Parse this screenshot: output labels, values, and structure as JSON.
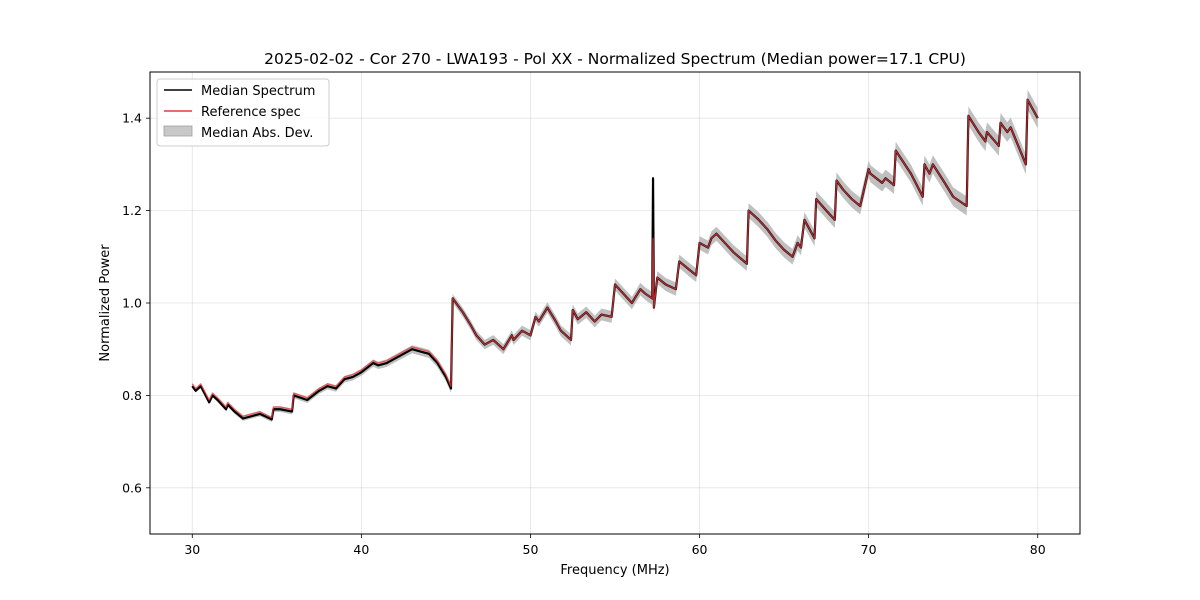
{
  "chart_data": {
    "type": "line",
    "title": "2025-02-02 - Cor 270 - LWA193 - Pol XX - Normalized Spectrum (Median power=17.1 CPU)",
    "xlabel": "Frequency (MHz)",
    "ylabel": "Normalized Power",
    "xlim": [
      27.5,
      82.5
    ],
    "ylim": [
      0.5,
      1.5
    ],
    "xticks": [
      30,
      40,
      50,
      60,
      70,
      80
    ],
    "yticks": [
      0.6,
      0.8,
      1.0,
      1.2,
      1.4
    ],
    "xtick_labels": [
      "30",
      "40",
      "50",
      "60",
      "70",
      "80"
    ],
    "ytick_labels": [
      "0.6",
      "0.8",
      "1.0",
      "1.2",
      "1.4"
    ],
    "grid": true,
    "legend_position": "top-left",
    "colors": {
      "median": "#000000",
      "reference": "#e8383d",
      "mad_band": "#b0b0b0"
    },
    "series": [
      {
        "name": "Median Spectrum",
        "x": [
          30.0,
          30.2,
          30.5,
          31.0,
          31.2,
          31.5,
          32.0,
          32.1,
          32.5,
          33.0,
          34.0,
          34.7,
          34.8,
          35.2,
          35.9,
          36.0,
          36.8,
          37.5,
          38.0,
          38.5,
          39.0,
          39.5,
          40.0,
          40.7,
          41.0,
          41.5,
          42.0,
          42.5,
          43.0,
          43.5,
          44.0,
          44.5,
          45.0,
          45.3,
          45.4,
          46.0,
          46.5,
          46.8,
          47.3,
          47.8,
          48.4,
          48.9,
          49.0,
          49.5,
          50.0,
          50.3,
          50.5,
          51.0,
          51.5,
          51.8,
          52.4,
          52.5,
          52.8,
          53.3,
          53.8,
          54.2,
          54.8,
          55.0,
          55.5,
          56.0,
          56.5,
          56.8,
          57.2,
          57.25,
          57.3,
          57.5,
          58.0,
          58.6,
          58.8,
          59.3,
          59.8,
          60.0,
          60.5,
          60.7,
          61.0,
          61.5,
          62.0,
          62.8,
          62.9,
          63.5,
          64.0,
          64.5,
          65.0,
          65.5,
          65.8,
          66.0,
          66.2,
          66.8,
          66.9,
          67.5,
          68.0,
          68.1,
          68.5,
          69.0,
          69.5,
          70.0,
          70.1,
          70.8,
          71.0,
          71.5,
          71.6,
          72.5,
          73.2,
          73.3,
          73.6,
          73.8,
          74.5,
          75.0,
          75.8,
          75.9,
          76.5,
          76.9,
          77.0,
          77.7,
          77.8,
          78.2,
          78.4,
          79.3,
          79.4,
          80.0
        ],
        "y": [
          0.82,
          0.81,
          0.82,
          0.785,
          0.8,
          0.79,
          0.77,
          0.78,
          0.765,
          0.75,
          0.76,
          0.748,
          0.77,
          0.77,
          0.765,
          0.8,
          0.79,
          0.81,
          0.82,
          0.815,
          0.835,
          0.84,
          0.85,
          0.87,
          0.865,
          0.87,
          0.88,
          0.89,
          0.9,
          0.895,
          0.89,
          0.87,
          0.84,
          0.815,
          1.01,
          0.98,
          0.95,
          0.93,
          0.91,
          0.92,
          0.9,
          0.93,
          0.92,
          0.94,
          0.93,
          0.97,
          0.96,
          0.99,
          0.96,
          0.94,
          0.92,
          0.985,
          0.965,
          0.98,
          0.96,
          0.975,
          0.97,
          1.04,
          1.02,
          1.0,
          1.03,
          1.02,
          1.01,
          1.27,
          0.99,
          1.055,
          1.04,
          1.03,
          1.09,
          1.075,
          1.06,
          1.13,
          1.12,
          1.14,
          1.15,
          1.13,
          1.11,
          1.085,
          1.2,
          1.18,
          1.16,
          1.135,
          1.115,
          1.1,
          1.13,
          1.12,
          1.18,
          1.14,
          1.225,
          1.2,
          1.18,
          1.265,
          1.245,
          1.225,
          1.21,
          1.29,
          1.28,
          1.26,
          1.27,
          1.255,
          1.33,
          1.28,
          1.23,
          1.3,
          1.28,
          1.3,
          1.26,
          1.23,
          1.21,
          1.405,
          1.37,
          1.35,
          1.37,
          1.34,
          1.39,
          1.37,
          1.38,
          1.3,
          1.44,
          1.4
        ]
      },
      {
        "name": "Reference spec",
        "x": [
          30.0,
          30.2,
          30.5,
          31.0,
          31.2,
          31.5,
          32.0,
          32.1,
          32.5,
          33.0,
          34.0,
          34.7,
          34.8,
          35.2,
          35.9,
          36.0,
          36.8,
          37.5,
          38.0,
          38.5,
          39.0,
          39.5,
          40.0,
          40.7,
          41.0,
          41.5,
          42.0,
          42.5,
          43.0,
          43.5,
          44.0,
          44.5,
          45.0,
          45.3,
          45.4,
          46.0,
          46.5,
          46.8,
          47.3,
          47.8,
          48.4,
          48.9,
          49.0,
          49.5,
          50.0,
          50.3,
          50.5,
          51.0,
          51.5,
          51.8,
          52.4,
          52.5,
          52.8,
          53.3,
          53.8,
          54.2,
          54.8,
          55.0,
          55.5,
          56.0,
          56.5,
          56.8,
          57.2,
          57.25,
          57.3,
          57.5,
          58.0,
          58.6,
          58.8,
          59.3,
          59.8,
          60.0,
          60.5,
          60.7,
          61.0,
          61.5,
          62.0,
          62.8,
          62.9,
          63.5,
          64.0,
          64.5,
          65.0,
          65.5,
          65.8,
          66.0,
          66.2,
          66.8,
          66.9,
          67.5,
          68.0,
          68.1,
          68.5,
          69.0,
          69.5,
          70.0,
          70.1,
          70.8,
          71.0,
          71.5,
          71.6,
          72.5,
          73.2,
          73.3,
          73.6,
          73.8,
          74.5,
          75.0,
          75.8,
          75.9,
          76.5,
          76.9,
          77.0,
          77.7,
          77.8,
          78.2,
          78.4,
          79.3,
          79.4,
          80.0
        ],
        "y": [
          0.825,
          0.815,
          0.825,
          0.79,
          0.805,
          0.795,
          0.775,
          0.785,
          0.77,
          0.755,
          0.765,
          0.752,
          0.775,
          0.775,
          0.77,
          0.805,
          0.795,
          0.815,
          0.825,
          0.82,
          0.84,
          0.845,
          0.855,
          0.875,
          0.87,
          0.875,
          0.885,
          0.895,
          0.905,
          0.9,
          0.895,
          0.875,
          0.845,
          0.82,
          1.01,
          0.98,
          0.95,
          0.93,
          0.91,
          0.92,
          0.9,
          0.93,
          0.92,
          0.94,
          0.93,
          0.97,
          0.96,
          0.99,
          0.96,
          0.94,
          0.92,
          0.985,
          0.965,
          0.98,
          0.96,
          0.975,
          0.97,
          1.04,
          1.02,
          1.0,
          1.03,
          1.02,
          1.01,
          1.14,
          0.99,
          1.055,
          1.04,
          1.03,
          1.09,
          1.075,
          1.06,
          1.13,
          1.12,
          1.14,
          1.15,
          1.13,
          1.11,
          1.085,
          1.2,
          1.18,
          1.16,
          1.135,
          1.115,
          1.1,
          1.13,
          1.12,
          1.18,
          1.14,
          1.225,
          1.2,
          1.18,
          1.265,
          1.245,
          1.225,
          1.21,
          1.29,
          1.28,
          1.26,
          1.27,
          1.255,
          1.33,
          1.28,
          1.23,
          1.3,
          1.28,
          1.3,
          1.26,
          1.23,
          1.21,
          1.405,
          1.37,
          1.35,
          1.37,
          1.34,
          1.39,
          1.37,
          1.38,
          1.3,
          1.44,
          1.4
        ]
      }
    ],
    "band": {
      "name": "Median Abs. Dev.",
      "half_width_start": 0.004,
      "half_width_end": 0.022
    },
    "legend": [
      "Median Spectrum",
      "Reference spec",
      "Median Abs. Dev."
    ]
  }
}
